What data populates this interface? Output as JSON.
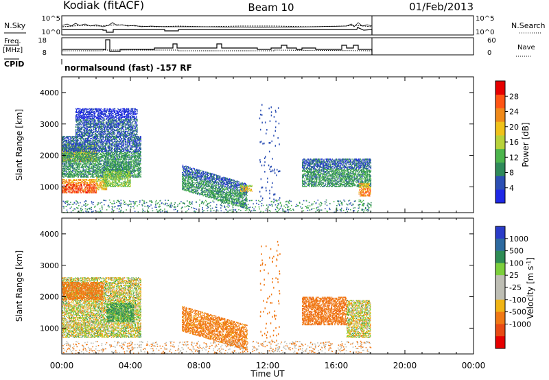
{
  "header": {
    "station": "Kodiak (fitACF)",
    "beam": "Beam 10",
    "date": "01/Feb/2013"
  },
  "strip_labels": {
    "nsky": "N.Sky",
    "nsearch": "N.Search",
    "freq": "Freq.",
    "freq_unit": "[MHz]",
    "nave": "Nave",
    "cpid": "CPID",
    "cpid_value": "normalsound (fast) -157 RF"
  },
  "strip_axes": {
    "noise_left_ticks": [
      "10^5",
      "10^0"
    ],
    "noise_right_ticks": [
      "10^5",
      "10^0"
    ],
    "freq_left_ticks": [
      "18",
      "8"
    ],
    "nave_right_ticks": [
      "60",
      "0"
    ]
  },
  "time_axis": {
    "label": "Time UT",
    "ticks": [
      "00:00",
      "04:00",
      "08:00",
      "12:00",
      "16:00",
      "20:00",
      "00:00"
    ],
    "range_hours": [
      0,
      24
    ]
  },
  "colors": {
    "power_scale": [
      "#1f28e6",
      "#2c4fb4",
      "#2f8a5a",
      "#4cb54c",
      "#b8d23a",
      "#f0c21a",
      "#f08a1a",
      "#ff5514",
      "#e60000"
    ],
    "velocity_scale": [
      "#2a3cc8",
      "#2d6aa0",
      "#2e8c55",
      "#7ccf3c",
      "#bebeb4",
      "#bebeb4",
      "#f0b414",
      "#f07814",
      "#e84a14",
      "#e60000"
    ],
    "ground_scatter": "#bdbdb5"
  },
  "chart_data": [
    {
      "type": "heatmap",
      "title": "Power",
      "xlabel": "Time UT",
      "ylabel": "Slant Range [km]",
      "xlim_hours": [
        0,
        24
      ],
      "ylim_km": [
        180,
        4500
      ],
      "yticks": [
        1000,
        2000,
        3000,
        4000
      ],
      "colorbar": {
        "label": "Power [dB]",
        "range": [
          0,
          32
        ],
        "ticks": [
          4,
          8,
          12,
          16,
          20,
          24,
          28
        ]
      },
      "echo_regions": [
        {
          "t0": 0.0,
          "t1": 2.0,
          "r0": 800,
          "r1": 1250,
          "value": 26
        },
        {
          "t0": 2.0,
          "t1": 2.6,
          "r0": 900,
          "r1": 1300,
          "value": 20
        },
        {
          "t0": 0.0,
          "t1": 2.0,
          "r0": 1800,
          "r1": 2350,
          "value": 18
        },
        {
          "t0": 0.0,
          "t1": 4.6,
          "r0": 1300,
          "r1": 2600,
          "value": 10
        },
        {
          "t0": 2.4,
          "t1": 4.0,
          "r0": 1000,
          "r1": 1800,
          "value": 14
        },
        {
          "t0": 0.8,
          "t1": 4.4,
          "r0": 2600,
          "r1": 3500,
          "value": 6
        },
        {
          "t0": 7.0,
          "t1": 10.8,
          "r0": 900,
          "r1": 1700,
          "value": 10
        },
        {
          "t0": 10.4,
          "t1": 11.1,
          "r0": 850,
          "r1": 1050,
          "value": 20
        },
        {
          "t0": 14.0,
          "t1": 18.0,
          "r0": 1000,
          "r1": 1900,
          "value": 10
        },
        {
          "t0": 17.3,
          "t1": 18.0,
          "r0": 700,
          "r1": 1100,
          "value": 24
        }
      ]
    },
    {
      "type": "heatmap",
      "title": "Velocity",
      "xlabel": "Time UT",
      "ylabel": "Slant Range [km]",
      "xlim_hours": [
        0,
        24
      ],
      "ylim_km": [
        180,
        4500
      ],
      "yticks": [
        1000,
        2000,
        3000,
        4000
      ],
      "colorbar": {
        "label": "Velocity [m s^-1]",
        "ticks": [
          "1000",
          "500",
          "100",
          "25",
          "-25",
          "-100",
          "-500",
          "-1000"
        ]
      },
      "echo_regions": [
        {
          "t0": 0.0,
          "t1": 4.6,
          "r0": 700,
          "r1": 2600,
          "value": 0
        },
        {
          "t0": 0.0,
          "t1": 2.4,
          "r0": 1900,
          "r1": 2450,
          "value": -300
        },
        {
          "t0": 2.6,
          "t1": 4.2,
          "r0": 1200,
          "r1": 1800,
          "value": 150
        },
        {
          "t0": 7.0,
          "t1": 10.8,
          "r0": 900,
          "r1": 1700,
          "value": -200
        },
        {
          "t0": 14.0,
          "t1": 16.6,
          "r0": 1100,
          "r1": 2000,
          "value": -400
        },
        {
          "t0": 16.6,
          "t1": 18.0,
          "r0": 700,
          "r1": 1900,
          "value": 0
        }
      ]
    }
  ]
}
